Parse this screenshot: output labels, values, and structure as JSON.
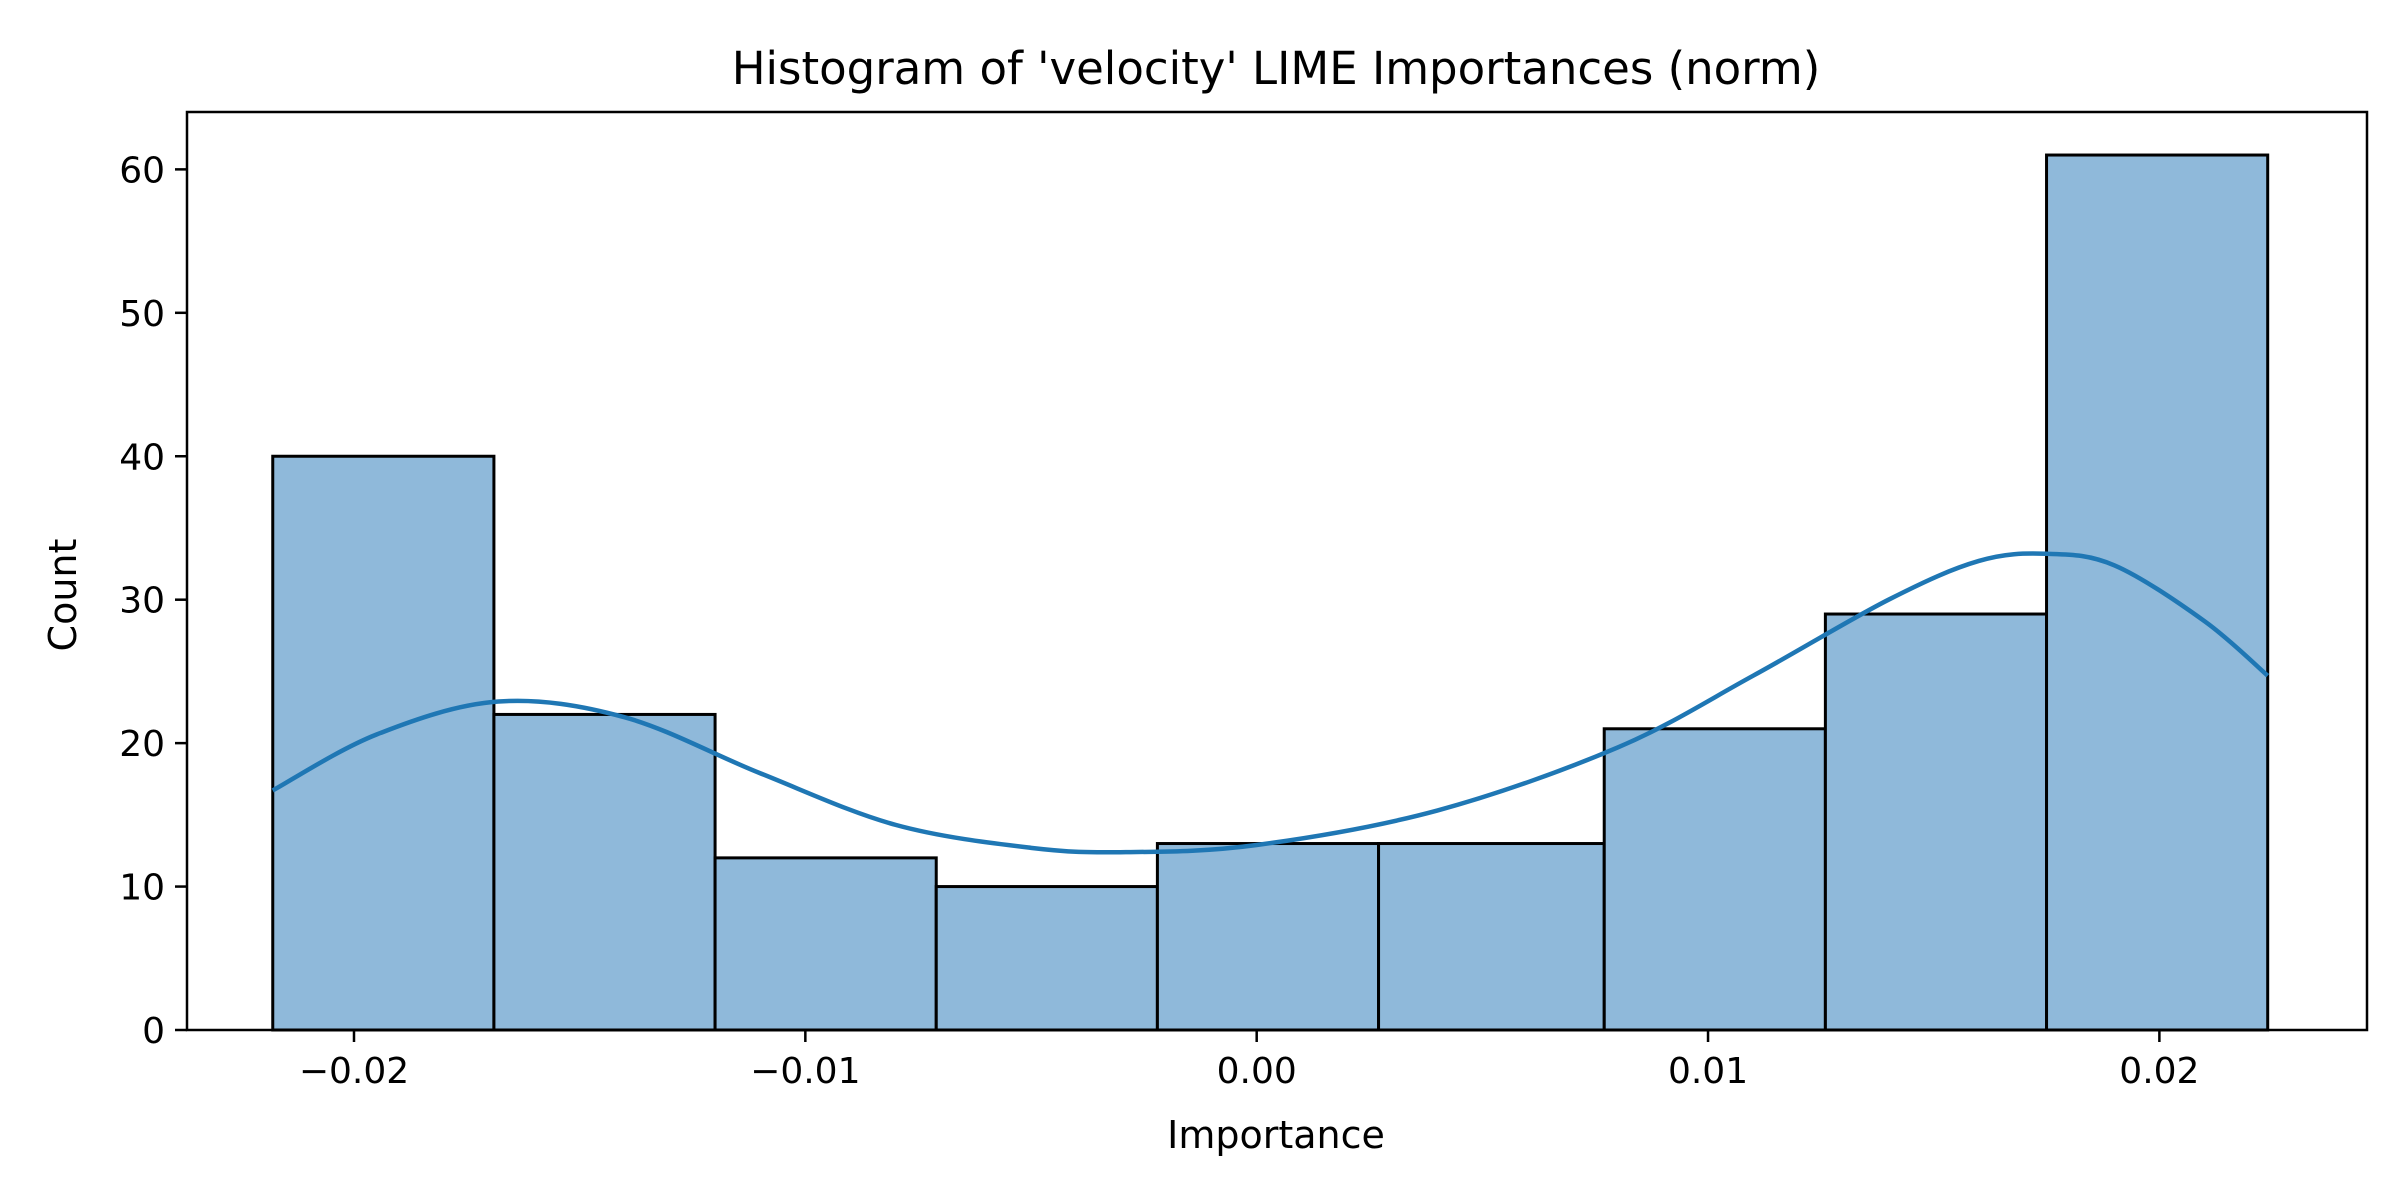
{
  "chart_data": {
    "type": "bar",
    "title": "Histogram of 'velocity' LIME Importances (norm)",
    "xlabel": "Importance",
    "ylabel": "Count",
    "xlim": [
      -0.0237,
      0.0246
    ],
    "ylim": [
      0,
      64
    ],
    "x_ticks": [
      {
        "value": -0.02,
        "label": "−0.02"
      },
      {
        "value": -0.01,
        "label": "−0.01"
      },
      {
        "value": 0.0,
        "label": "0.00"
      },
      {
        "value": 0.01,
        "label": "0.01"
      },
      {
        "value": 0.02,
        "label": "0.02"
      }
    ],
    "y_ticks": [
      {
        "value": 0,
        "label": "0"
      },
      {
        "value": 10,
        "label": "10"
      },
      {
        "value": 20,
        "label": "20"
      },
      {
        "value": 30,
        "label": "30"
      },
      {
        "value": 40,
        "label": "40"
      },
      {
        "value": 50,
        "label": "50"
      },
      {
        "value": 60,
        "label": "60"
      }
    ],
    "bins": [
      {
        "x0": -0.0218,
        "x1": -0.0169,
        "count": 40
      },
      {
        "x0": -0.0169,
        "x1": -0.012,
        "count": 22
      },
      {
        "x0": -0.012,
        "x1": -0.0071,
        "count": 12
      },
      {
        "x0": -0.0071,
        "x1": -0.0022,
        "count": 10
      },
      {
        "x0": -0.0022,
        "x1": 0.0027,
        "count": 13
      },
      {
        "x0": 0.0027,
        "x1": 0.0077,
        "count": 13
      },
      {
        "x0": 0.0077,
        "x1": 0.0126,
        "count": 21
      },
      {
        "x0": 0.0126,
        "x1": 0.0175,
        "count": 29
      },
      {
        "x0": 0.0175,
        "x1": 0.0224,
        "count": 61
      }
    ],
    "kde": {
      "x": [
        -0.0218,
        -0.0195,
        -0.0168,
        -0.014,
        -0.011,
        -0.008,
        -0.005,
        -0.0029,
        0.0,
        0.004,
        0.008,
        0.011,
        0.014,
        0.016,
        0.0175,
        0.019,
        0.021,
        0.0224
      ],
      "y": [
        16.7,
        20.6,
        22.9,
        21.8,
        17.9,
        14.3,
        12.7,
        12.4,
        12.9,
        15.3,
        19.7,
        24.7,
        30.0,
        32.7,
        33.2,
        32.4,
        28.5,
        24.7
      ]
    },
    "bar_fill": "#8fb9da",
    "bar_edge": "#000000",
    "kde_color": "#1f77b4",
    "grid": false,
    "legend": false
  }
}
